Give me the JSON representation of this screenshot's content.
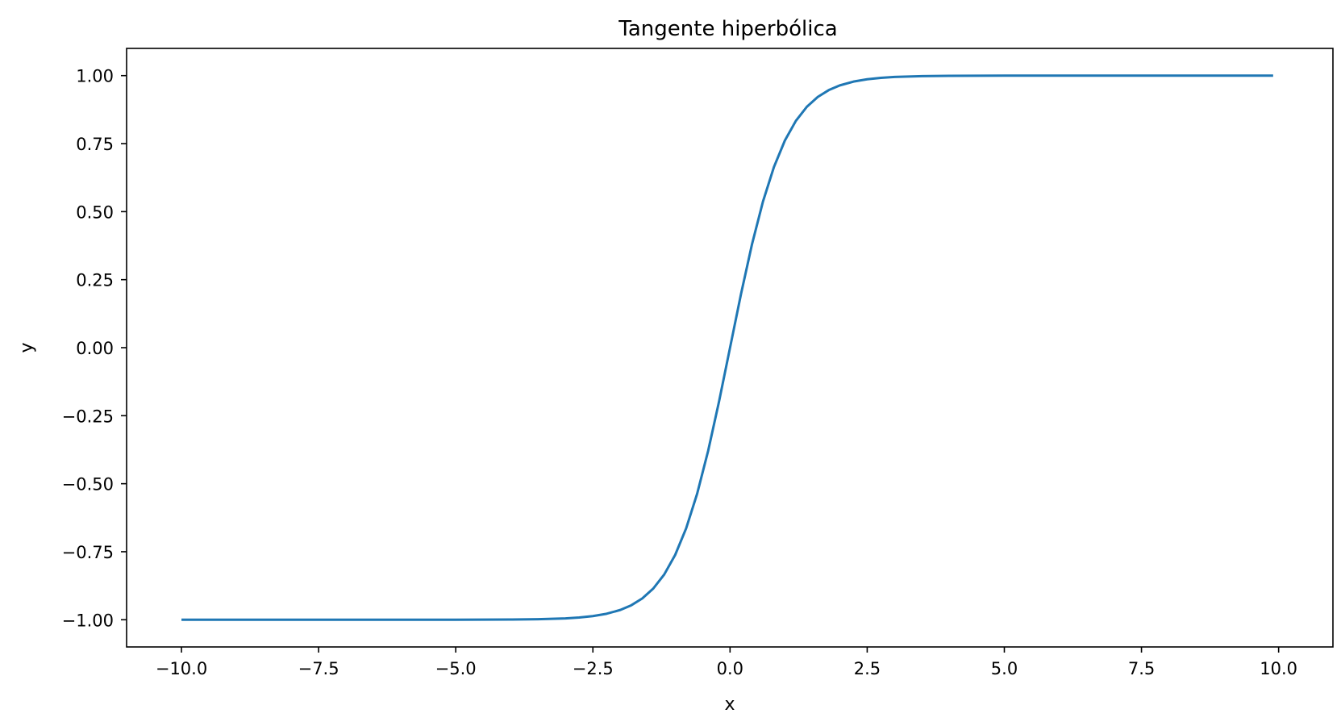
{
  "chart_data": {
    "type": "line",
    "title": "Tangente hiperbólica",
    "xlabel": "x",
    "ylabel": "y",
    "xlim": [
      -11.0,
      10.99
    ],
    "ylim": [
      -1.1,
      1.1
    ],
    "grid": false,
    "legend": "none",
    "x_ticks": [
      -10.0,
      -7.5,
      -5.0,
      -2.5,
      0.0,
      2.5,
      5.0,
      7.5,
      10.0
    ],
    "x_tick_labels": [
      "−10.0",
      "−7.5",
      "−5.0",
      "−2.5",
      "0.0",
      "2.5",
      "5.0",
      "7.5",
      "10.0"
    ],
    "y_ticks": [
      1.0,
      0.75,
      0.5,
      0.25,
      0.0,
      -0.25,
      -0.5,
      -0.75,
      -1.0
    ],
    "y_tick_labels": [
      "1.00",
      "0.75",
      "0.50",
      "0.25",
      "0.00",
      "−0.25",
      "−0.50",
      "−0.75",
      "−1.00"
    ],
    "series": [
      {
        "color": "#1f77b4",
        "x": [
          -10.0,
          -8.0,
          -6.0,
          -5.0,
          -4.0,
          -3.5,
          -3.0,
          -2.75,
          -2.5,
          -2.25,
          -2.0,
          -1.8,
          -1.6,
          -1.4,
          -1.2,
          -1.0,
          -0.8,
          -0.6,
          -0.4,
          -0.2,
          0.0,
          0.2,
          0.4,
          0.6,
          0.8,
          1.0,
          1.2,
          1.4,
          1.6,
          1.8,
          2.0,
          2.25,
          2.5,
          2.75,
          3.0,
          3.5,
          4.0,
          5.0,
          6.0,
          8.0,
          9.9
        ],
        "y": [
          -1.0,
          -1.0,
          -1.0,
          -0.9999,
          -0.9993,
          -0.9982,
          -0.9951,
          -0.9918,
          -0.9866,
          -0.978,
          -0.964,
          -0.9468,
          -0.9217,
          -0.8854,
          -0.8337,
          -0.7616,
          -0.664,
          -0.537,
          -0.3799,
          -0.1974,
          0.0,
          0.1974,
          0.3799,
          0.537,
          0.664,
          0.7616,
          0.8337,
          0.8854,
          0.9217,
          0.9468,
          0.964,
          0.978,
          0.9866,
          0.9918,
          0.9951,
          0.9982,
          0.9993,
          0.9999,
          1.0,
          1.0,
          1.0
        ]
      }
    ]
  }
}
